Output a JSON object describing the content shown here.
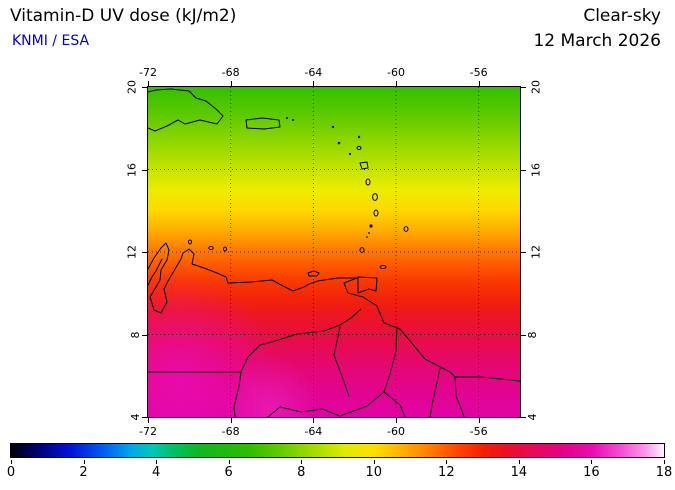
{
  "header": {
    "title": "Vitamin-D UV dose (kJ/m2)",
    "source": "KNMI / ESA",
    "condition": "Clear-sky",
    "date": "12 March 2026"
  },
  "map": {
    "lon_range": [
      -72,
      -54
    ],
    "lat_range": [
      4,
      20
    ],
    "lon_ticks": [
      -72,
      -68,
      -64,
      -60,
      -56
    ],
    "lat_ticks": [
      20,
      16,
      12,
      8,
      4
    ],
    "grid_style": "dotted",
    "coastline_color": "#000000",
    "gradient_stops": [
      {
        "lat": 20.0,
        "color": "#33bf00"
      },
      {
        "lat": 18.5,
        "color": "#63cb00"
      },
      {
        "lat": 17.2,
        "color": "#95d800"
      },
      {
        "lat": 16.0,
        "color": "#c6e400"
      },
      {
        "lat": 15.0,
        "color": "#ecec00"
      },
      {
        "lat": 14.0,
        "color": "#ffd800"
      },
      {
        "lat": 13.0,
        "color": "#ffab00"
      },
      {
        "lat": 12.2,
        "color": "#ff8000"
      },
      {
        "lat": 11.4,
        "color": "#ff5a00"
      },
      {
        "lat": 10.6,
        "color": "#fa3a00"
      },
      {
        "lat": 9.8,
        "color": "#f32507"
      },
      {
        "lat": 9.0,
        "color": "#ed1620"
      },
      {
        "lat": 8.0,
        "color": "#e90e40"
      },
      {
        "lat": 7.0,
        "color": "#e60961"
      },
      {
        "lat": 6.0,
        "color": "#e4067e"
      },
      {
        "lat": 5.0,
        "color": "#e10494"
      },
      {
        "lat": 4.0,
        "color": "#df03a3"
      }
    ]
  },
  "colorbar": {
    "min": 0,
    "max": 18,
    "ticks": [
      0,
      2,
      4,
      6,
      8,
      10,
      12,
      14,
      16,
      18
    ],
    "stops": [
      {
        "value": 0,
        "color": "#000006"
      },
      {
        "value": 0.7,
        "color": "#00006e"
      },
      {
        "value": 1.6,
        "color": "#0010d8"
      },
      {
        "value": 2.6,
        "color": "#0063f0"
      },
      {
        "value": 3.3,
        "color": "#00a8e8"
      },
      {
        "value": 3.9,
        "color": "#00c8b4"
      },
      {
        "value": 4.5,
        "color": "#00c060"
      },
      {
        "value": 5.2,
        "color": "#10b820"
      },
      {
        "value": 6.5,
        "color": "#2cbc00"
      },
      {
        "value": 7.5,
        "color": "#66cc00"
      },
      {
        "value": 8.3,
        "color": "#a0dc00"
      },
      {
        "value": 9.2,
        "color": "#e0ea00"
      },
      {
        "value": 10.0,
        "color": "#ffe000"
      },
      {
        "value": 10.8,
        "color": "#ffae00"
      },
      {
        "value": 11.6,
        "color": "#ff7a00"
      },
      {
        "value": 12.3,
        "color": "#ff4600"
      },
      {
        "value": 13.0,
        "color": "#f32000"
      },
      {
        "value": 13.7,
        "color": "#ea0f2b"
      },
      {
        "value": 14.4,
        "color": "#e70a58"
      },
      {
        "value": 15.2,
        "color": "#e30585"
      },
      {
        "value": 16.0,
        "color": "#e80bb0"
      },
      {
        "value": 16.8,
        "color": "#f24ed2"
      },
      {
        "value": 17.5,
        "color": "#fc9be8"
      },
      {
        "value": 18,
        "color": "#fff3fb"
      }
    ]
  },
  "chart_data": {
    "type": "heatmap",
    "title": "Vitamin-D UV dose (kJ/m2)",
    "condition": "Clear-sky",
    "date": "12 March 2026",
    "source": "KNMI / ESA",
    "xlabel": "",
    "ylabel": "",
    "x_range": [
      -72,
      -54
    ],
    "x_ticks": [
      -72,
      -68,
      -64,
      -60,
      -56
    ],
    "y_range": [
      4,
      20
    ],
    "y_ticks": [
      20,
      16,
      12,
      8,
      4
    ],
    "colorbar_range": [
      0,
      18
    ],
    "colorbar_ticks": [
      0,
      2,
      4,
      6,
      8,
      10,
      12,
      14,
      16,
      18
    ],
    "grid": "dotted every 4 degrees",
    "legend_position": "bottom colorbar",
    "dose_by_latitude": {
      "latitudes": [
        20,
        18,
        16,
        14,
        12,
        10,
        8,
        6,
        4
      ],
      "approx_dose_kj_m2": [
        7.0,
        8.5,
        9.5,
        10.5,
        11.5,
        12.5,
        13.5,
        14.5,
        15.0
      ]
    }
  }
}
